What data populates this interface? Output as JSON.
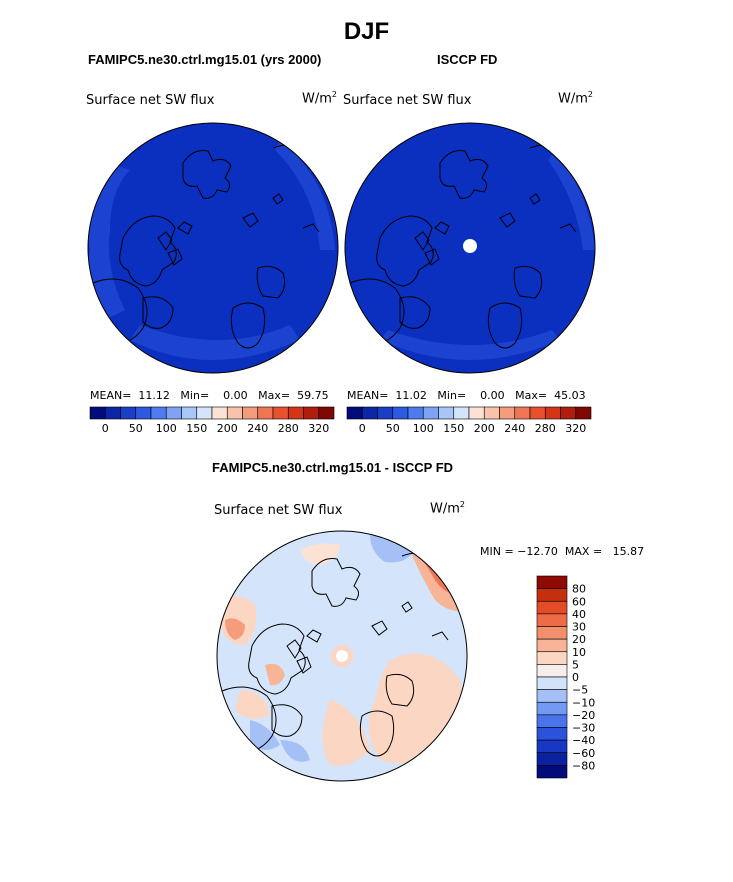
{
  "page_title": "DJF",
  "variable": "Surface net SW flux",
  "units": "W/m",
  "units_exp": "2",
  "colors": {
    "top_scale": [
      "#030a7a",
      "#0b26a6",
      "#1a3ec6",
      "#2c5ae0",
      "#4f7bee",
      "#7fa3f4",
      "#a9c6f8",
      "#d3e4fb",
      "#fbe2d4",
      "#f8c3a8",
      "#f49d7c",
      "#ef7652",
      "#e85130",
      "#d63418",
      "#b01d0c",
      "#7f0704"
    ],
    "diff_scale": [
      "#030a7a",
      "#0b22a0",
      "#1838c4",
      "#2a52de",
      "#4a74ec",
      "#7399f2",
      "#a4c0f7",
      "#d2e2fb",
      "#f6eeea",
      "#fbd6c3",
      "#f7b497",
      "#f28f6c",
      "#ed6c47",
      "#e24c26",
      "#c52f0e",
      "#8d0a05"
    ],
    "land_low": "#0b2fbf",
    "land_edge": "#1d46d2",
    "diff_base": "#d4e5fb"
  },
  "panels": [
    {
      "title": "FAMIPC5.ne30.ctrl.mg15.01 (yrs 2000)",
      "stats": {
        "mean_label": "MEAN=",
        "mean": "11.12",
        "min_label": "Min=",
        "min": "0.00",
        "max_label": "Max=",
        "max": "59.75"
      },
      "colorbar_labels": [
        "0",
        "50",
        "100",
        "150",
        "200",
        "240",
        "280",
        "320"
      ]
    },
    {
      "title": "ISCCP FD",
      "stats": {
        "mean_label": "MEAN=",
        "mean": "11.02",
        "min_label": "Min=",
        "min": "0.00",
        "max_label": "Max=",
        "max": "45.03"
      },
      "colorbar_labels": [
        "0",
        "50",
        "100",
        "150",
        "200",
        "240",
        "280",
        "320"
      ]
    }
  ],
  "difference": {
    "title": "FAMIPC5.ne30.ctrl.mg15.01 - ISCCP FD",
    "stats": {
      "min_label": "MIN =",
      "min": "−12.70",
      "max_label": "MAX =",
      "max": "15.87"
    },
    "colorbar_labels": [
      "80",
      "60",
      "40",
      "30",
      "20",
      "10",
      "5",
      "0",
      "−5",
      "−10",
      "−20",
      "−30",
      "−40",
      "−60",
      "−80"
    ]
  },
  "chart_data": [
    {
      "type": "heatmap",
      "title": "FAMIPC5.ne30.ctrl.mg15.01 (yrs 2000)",
      "projection": "north polar stereographic",
      "mean": 11.12,
      "min": 0.0,
      "max": 59.75,
      "levels": [
        0,
        25,
        50,
        75,
        100,
        125,
        150,
        175,
        200,
        220,
        240,
        260,
        280,
        300,
        320
      ]
    },
    {
      "type": "heatmap",
      "title": "ISCCP FD",
      "projection": "north polar stereographic",
      "mean": 11.02,
      "min": 0.0,
      "max": 45.03,
      "levels": [
        0,
        25,
        50,
        75,
        100,
        125,
        150,
        175,
        200,
        220,
        240,
        260,
        280,
        300,
        320
      ]
    },
    {
      "type": "heatmap",
      "title": "FAMIPC5.ne30.ctrl.mg15.01 - ISCCP FD",
      "projection": "north polar stereographic",
      "min": -12.7,
      "max": 15.87,
      "levels": [
        -80,
        -60,
        -40,
        -30,
        -20,
        -10,
        -5,
        0,
        5,
        10,
        20,
        30,
        40,
        60,
        80
      ]
    }
  ]
}
